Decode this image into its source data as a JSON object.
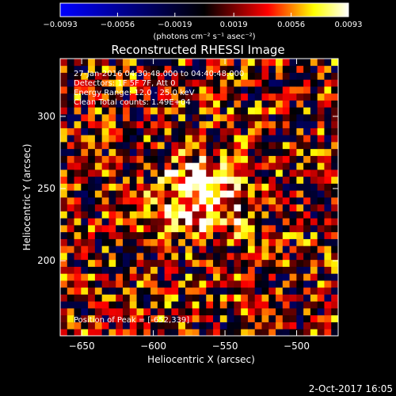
{
  "chart_data": {
    "type": "heatmap",
    "title": "Reconstructed RHESSI Image",
    "xlabel": "Heliocentric X (arcsec)",
    "ylabel": "Heliocentric Y (arcsec)",
    "xlim": [
      -665,
      -471
    ],
    "ylim": [
      148,
      340
    ],
    "x_ticks": [
      -650,
      -600,
      -550,
      -500
    ],
    "y_ticks": [
      200,
      250,
      300
    ],
    "colorbar": {
      "min": -0.0093,
      "max": 0.0093,
      "ticks": [
        -0.0093,
        -0.0056,
        -0.0019,
        0.0019,
        0.0056,
        0.0093
      ],
      "tick_labels": [
        "-0.0093",
        "-0.0056",
        "-0.0019",
        "0.0019",
        "0.0056",
        "0.0093"
      ],
      "units_label": "(photons cm⁻² s⁻¹ asec⁻²)",
      "colormap": [
        "#0000ff",
        "#000000",
        "#ff0000",
        "#ffff00",
        "#ffffff"
      ]
    },
    "grid": {
      "cols": 40,
      "rows": 40,
      "peak_x": -565,
      "peak_y": 245,
      "peak_sigma_x": 20,
      "peak_sigma_y": 16,
      "peak_amplitude": 0.0085,
      "noise_amplitude": 0.0055
    },
    "annotations": {
      "time_range": "27-Jan-2016 04:30:48.000 to 04:40:48.000",
      "detectors": "Detectors: 1F 5F 7F, Att 0",
      "energy": "Energy Range: 12.0 - 25.0 keV",
      "method": "Clean    Total counts: 1.49E+04",
      "peak": "Position of Peak = [-652,339]"
    },
    "footer_date": "2-Oct-2017 16:05"
  }
}
